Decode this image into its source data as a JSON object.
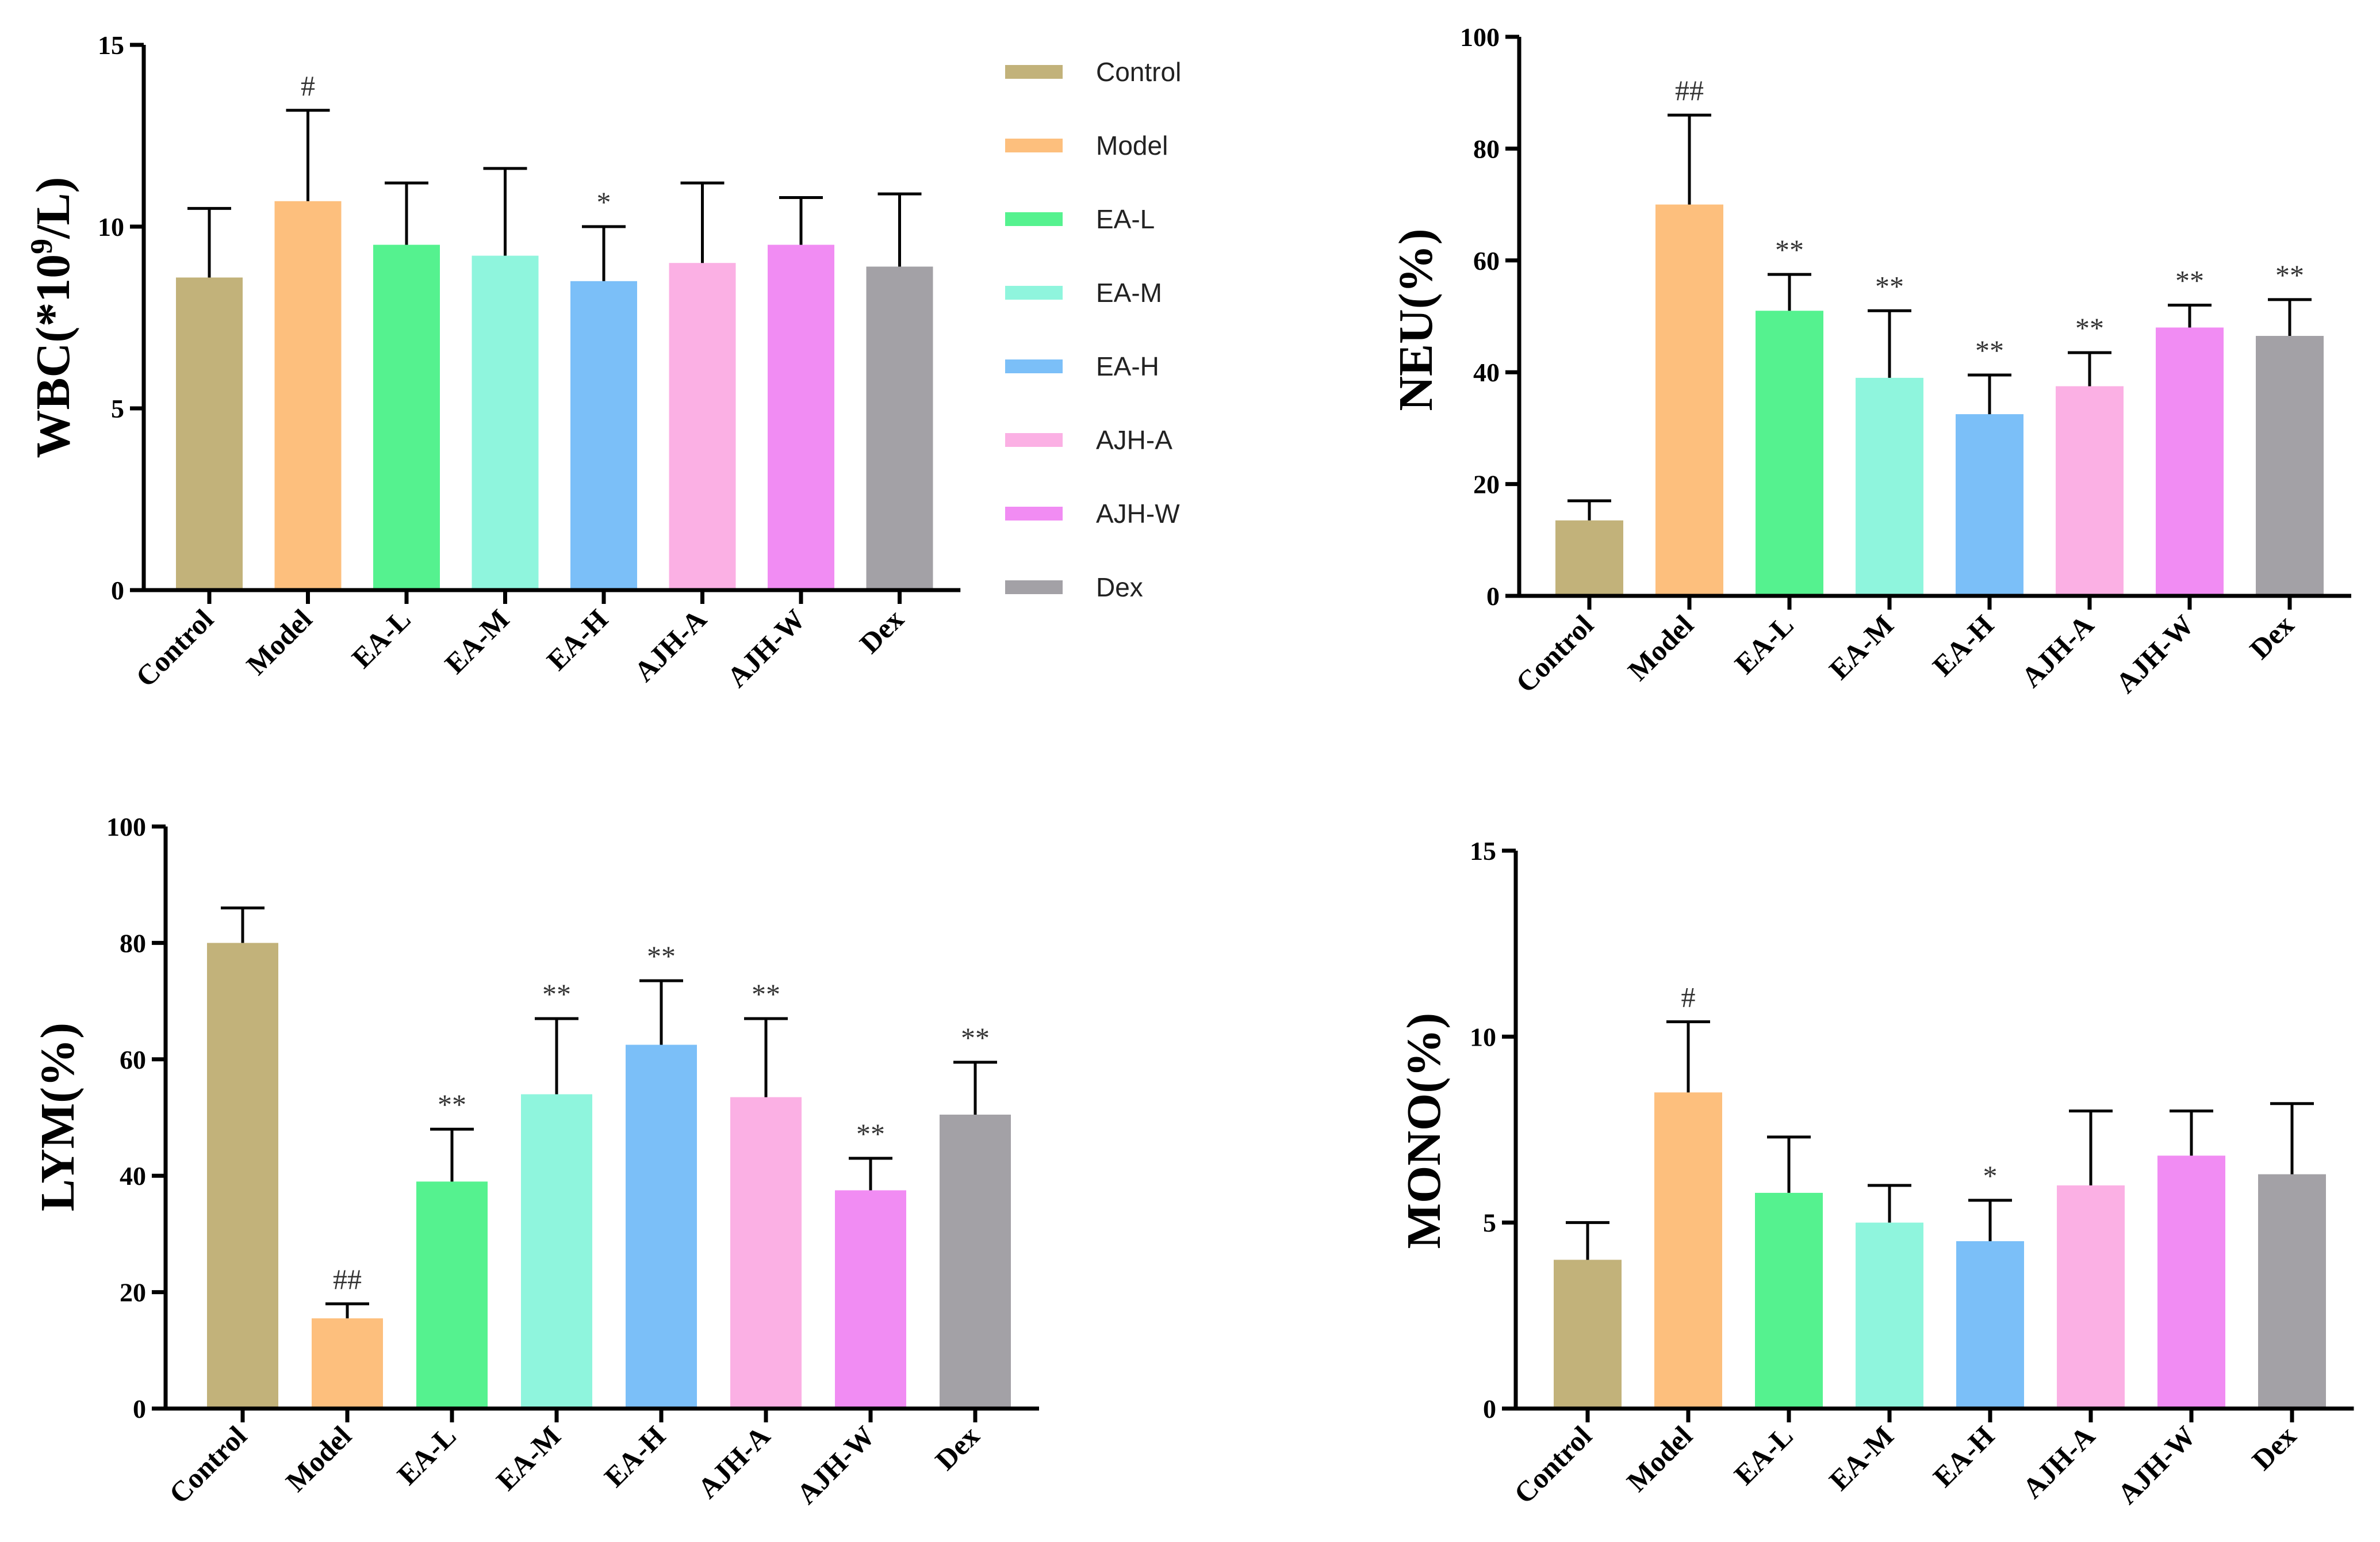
{
  "chart_data": [
    {
      "type": "bar",
      "ylabel": "WBC(*10^9/L)",
      "ylabel_main": "WBC(*10",
      "ylabel_sup": "9",
      "ylabel_tail": "/L)",
      "ylim": [
        0,
        15
      ],
      "yticks": [
        "0",
        "5",
        "10",
        "15"
      ],
      "categories": [
        "Control",
        "Model",
        "EA-L",
        "EA-M",
        "EA-H",
        "AJH-A",
        "AJH-W",
        "Dex"
      ],
      "values": [
        8.6,
        10.7,
        9.5,
        9.2,
        8.5,
        9.0,
        9.5,
        8.9
      ],
      "errors": [
        1.9,
        2.5,
        1.7,
        2.4,
        1.5,
        2.2,
        1.3,
        2.0
      ],
      "significance": [
        "",
        "#",
        "",
        "",
        "*",
        "",
        "",
        ""
      ]
    },
    {
      "type": "bar",
      "ylabel": "NEU(%)",
      "ylim": [
        0,
        100
      ],
      "yticks": [
        "0",
        "20",
        "40",
        "60",
        "80",
        "100"
      ],
      "categories": [
        "Control",
        "Model",
        "EA-L",
        "EA-M",
        "EA-H",
        "AJH-A",
        "AJH-W",
        "Dex"
      ],
      "values": [
        13.5,
        70,
        51,
        39,
        32.5,
        37.5,
        48,
        46.5
      ],
      "errors": [
        3.5,
        16,
        6.5,
        12,
        7,
        6,
        4,
        6.5
      ],
      "significance": [
        "",
        "##",
        "**",
        "**",
        "**",
        "**",
        "**",
        "**"
      ]
    },
    {
      "type": "bar",
      "ylabel": "LYM(%)",
      "ylim": [
        0,
        100
      ],
      "yticks": [
        "0",
        "20",
        "40",
        "60",
        "80",
        "100"
      ],
      "categories": [
        "Control",
        "Model",
        "EA-L",
        "EA-M",
        "EA-H",
        "AJH-A",
        "AJH-W",
        "Dex"
      ],
      "values": [
        80,
        15.5,
        39,
        54,
        62.5,
        53.5,
        37.5,
        50.5
      ],
      "errors": [
        6,
        2.5,
        9,
        13,
        11,
        13.5,
        5.5,
        9
      ],
      "significance": [
        "",
        "##",
        "**",
        "**",
        "**",
        "**",
        "**",
        "**"
      ]
    },
    {
      "type": "bar",
      "ylabel": "MONO(%)",
      "ylim": [
        0,
        15
      ],
      "yticks": [
        "0",
        "5",
        "10",
        "15"
      ],
      "categories": [
        "Control",
        "Model",
        "EA-L",
        "EA-M",
        "EA-H",
        "AJH-A",
        "AJH-W",
        "Dex"
      ],
      "values": [
        4.0,
        8.5,
        5.8,
        5.0,
        4.5,
        6.0,
        6.8,
        6.3
      ],
      "errors": [
        1.0,
        1.9,
        1.5,
        1.0,
        1.1,
        2.0,
        1.2,
        1.9
      ],
      "significance": [
        "",
        "#",
        "",
        "",
        "*",
        "",
        "",
        ""
      ]
    }
  ],
  "legend": {
    "entries": [
      "Control",
      "Model",
      "EA-L",
      "EA-M",
      "EA-H",
      "AJH-A",
      "AJH-W",
      "Dex"
    ]
  },
  "colors": [
    "#c2b27a",
    "#fdbf7d",
    "#55f28f",
    "#8ff5dd",
    "#7bbff8",
    "#fbb0e4",
    "#f18cf3",
    "#a3a1a6"
  ]
}
